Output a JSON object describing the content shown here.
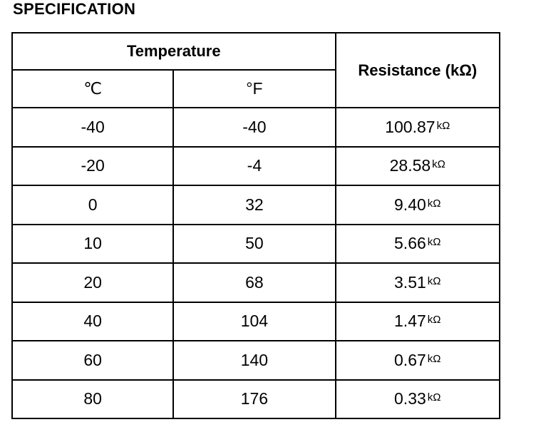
{
  "title": "SPECIFICATION",
  "table": {
    "header": {
      "temperature": "Temperature",
      "celsius": "℃",
      "fahrenheit": "°F",
      "resistance": "Resistance (kΩ)"
    },
    "rows": [
      {
        "celsius": "-40",
        "fahrenheit": "-40",
        "resistance": "100.87",
        "unit": "kΩ"
      },
      {
        "celsius": "-20",
        "fahrenheit": "-4",
        "resistance": "28.58",
        "unit": "kΩ"
      },
      {
        "celsius": "0",
        "fahrenheit": "32",
        "resistance": "9.40",
        "unit": "kΩ"
      },
      {
        "celsius": "10",
        "fahrenheit": "50",
        "resistance": "5.66",
        "unit": "kΩ"
      },
      {
        "celsius": "20",
        "fahrenheit": "68",
        "resistance": "3.51",
        "unit": "kΩ"
      },
      {
        "celsius": "40",
        "fahrenheit": "104",
        "resistance": "1.47",
        "unit": "kΩ"
      },
      {
        "celsius": "60",
        "fahrenheit": "140",
        "resistance": "0.67",
        "unit": "kΩ"
      },
      {
        "celsius": "80",
        "fahrenheit": "176",
        "resistance": "0.33",
        "unit": "kΩ"
      }
    ]
  }
}
